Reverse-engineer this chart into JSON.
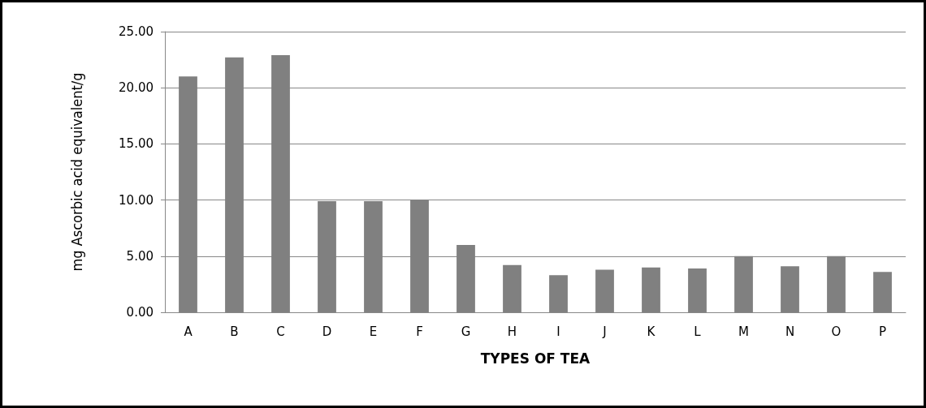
{
  "chart_data": {
    "type": "bar",
    "xlabel": "TYPES OF TEA",
    "ylabel": "mg Ascorbic acid equivalent/g",
    "categories": [
      "A",
      "B",
      "C",
      "D",
      "E",
      "F",
      "G",
      "H",
      "I",
      "J",
      "K",
      "L",
      "M",
      "N",
      "O",
      "P"
    ],
    "values": [
      21.0,
      22.7,
      22.9,
      9.9,
      9.9,
      10.0,
      6.0,
      4.2,
      3.3,
      3.8,
      4.0,
      3.9,
      5.0,
      4.1,
      5.0,
      3.6
    ],
    "color": "#808080",
    "ylim": [
      0,
      25
    ],
    "yticks": [
      {
        "value": 0,
        "label": "0.00"
      },
      {
        "value": 5,
        "label": "5.00"
      },
      {
        "value": 10,
        "label": "10.00"
      },
      {
        "value": 15,
        "label": "15.00"
      },
      {
        "value": 20,
        "label": "20.00"
      },
      {
        "value": 25,
        "label": "25.00"
      }
    ],
    "grid": "y"
  }
}
